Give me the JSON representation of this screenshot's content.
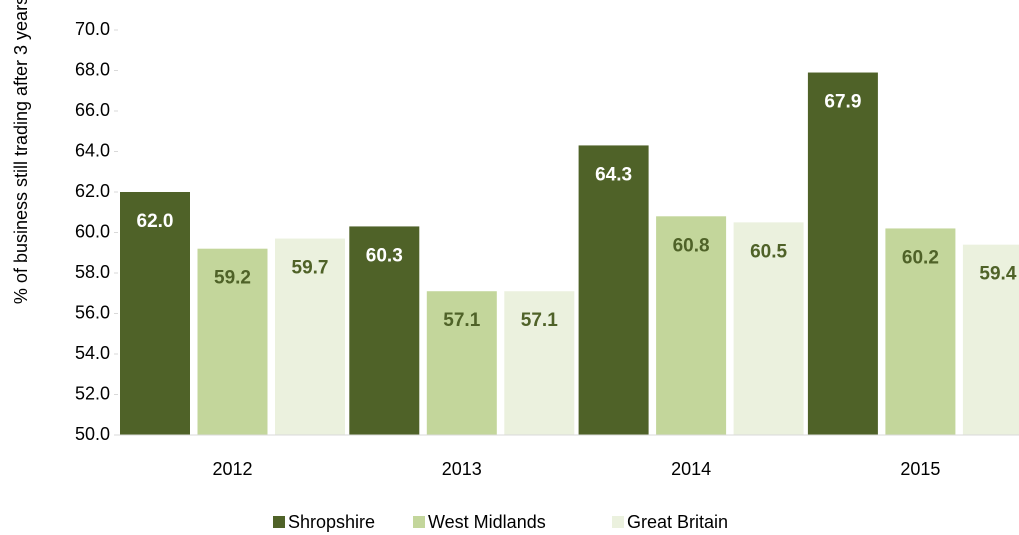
{
  "chart_data": {
    "type": "bar",
    "y_label": "% of business still trading after 3 years",
    "categories": [
      "2012",
      "2013",
      "2014",
      "2015"
    ],
    "series": [
      {
        "name": "Shropshire",
        "color": "#4f6228",
        "values": [
          62.0,
          60.3,
          64.3,
          67.9
        ],
        "value_labels": [
          "62.0",
          "60.3",
          "64.3",
          "67.9"
        ]
      },
      {
        "name": "West Midlands",
        "color": "#c3d69b",
        "values": [
          59.2,
          57.1,
          60.8,
          60.2
        ],
        "value_labels": [
          "59.2",
          "57.1",
          "60.8",
          "60.2"
        ]
      },
      {
        "name": "Great Britain",
        "color": "#ebf1de",
        "values": [
          59.7,
          57.1,
          60.5,
          59.4
        ],
        "value_labels": [
          "59.7",
          "57.1",
          "60.5",
          "59.4"
        ]
      }
    ],
    "ylim": [
      50,
      70
    ],
    "yticks": [
      {
        "value": 50,
        "label": "50.0"
      },
      {
        "value": 52,
        "label": "52.0"
      },
      {
        "value": 54,
        "label": "54.0"
      },
      {
        "value": 56,
        "label": "56.0"
      },
      {
        "value": 58,
        "label": "58.0"
      },
      {
        "value": 60,
        "label": "60.0"
      },
      {
        "value": 62,
        "label": "62.0"
      },
      {
        "value": 64,
        "label": "64.0"
      },
      {
        "value": 66,
        "label": "66.0"
      },
      {
        "value": 68,
        "label": "68.0"
      },
      {
        "value": 70,
        "label": "70.0"
      }
    ],
    "legend": "bottom"
  }
}
